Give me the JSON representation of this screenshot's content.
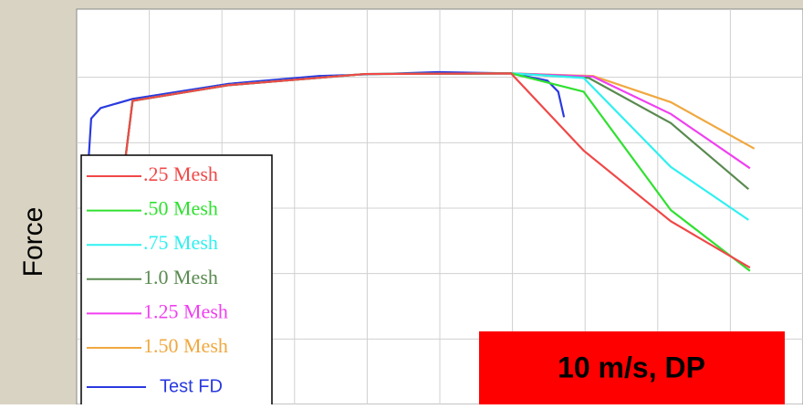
{
  "chart_data": {
    "type": "line",
    "y_label": "Force",
    "annotation": "10 m/s, DP",
    "xlim": [
      0,
      10
    ],
    "ylim": [
      0,
      6
    ],
    "xticks": [
      1,
      2,
      3,
      4,
      5,
      6,
      7,
      8,
      9
    ],
    "yticks": [
      1,
      2,
      3,
      4,
      5
    ],
    "grid": true,
    "legend": "lower-left",
    "series": [
      {
        "name": ".25 Mesh",
        "color": "#f04848",
        "x": [
          0.25,
          0.77,
          2.09,
          3.97,
          5.98,
          6.98,
          8.18,
          9.27
        ],
        "values": [
          0,
          4.64,
          4.88,
          5.05,
          5.06,
          3.88,
          2.8,
          2.09
        ]
      },
      {
        "name": ".50 Mesh",
        "color": "#30e030",
        "x": [
          0.25,
          0.77,
          2.09,
          3.97,
          5.98,
          6.98,
          8.18,
          9.27
        ],
        "values": [
          0,
          4.64,
          4.88,
          5.05,
          5.06,
          4.78,
          2.97,
          2.04
        ]
      },
      {
        "name": ".75 Mesh",
        "color": "#30f0f0",
        "x": [
          0.25,
          0.77,
          2.09,
          3.97,
          5.98,
          6.98,
          8.18,
          9.25
        ],
        "values": [
          0,
          4.64,
          4.88,
          5.05,
          5.06,
          4.99,
          3.63,
          2.82
        ]
      },
      {
        "name": "1.0 Mesh",
        "color": "#5a8a50",
        "x": [
          0.25,
          0.77,
          2.09,
          3.97,
          5.98,
          7.05,
          8.18,
          9.25
        ],
        "values": [
          0,
          4.64,
          4.88,
          5.05,
          5.06,
          4.99,
          4.3,
          3.29
        ]
      },
      {
        "name": "1.25 Mesh",
        "color": "#f040f0",
        "x": [
          0.25,
          0.77,
          2.09,
          3.97,
          5.98,
          7.11,
          8.18,
          9.27
        ],
        "values": [
          0,
          4.64,
          4.88,
          5.05,
          5.06,
          5.01,
          4.44,
          3.61
        ]
      },
      {
        "name": "1.50 Mesh",
        "color": "#f0a840",
        "x": [
          0.25,
          0.77,
          2.09,
          3.97,
          5.98,
          7.11,
          8.18,
          9.33
        ],
        "values": [
          0,
          4.64,
          4.88,
          5.05,
          5.06,
          5.02,
          4.62,
          3.91
        ]
      },
      {
        "name": "Test FD",
        "color": "#2a3ae0",
        "x": [
          0.16,
          0.16,
          0.2,
          0.33,
          0.77,
          2.09,
          3.34,
          4.97,
          5.98,
          6.48,
          6.63,
          6.71
        ],
        "values": [
          0,
          3.67,
          4.37,
          4.53,
          4.67,
          4.9,
          5.02,
          5.08,
          5.06,
          4.95,
          4.78,
          4.39
        ]
      }
    ]
  }
}
